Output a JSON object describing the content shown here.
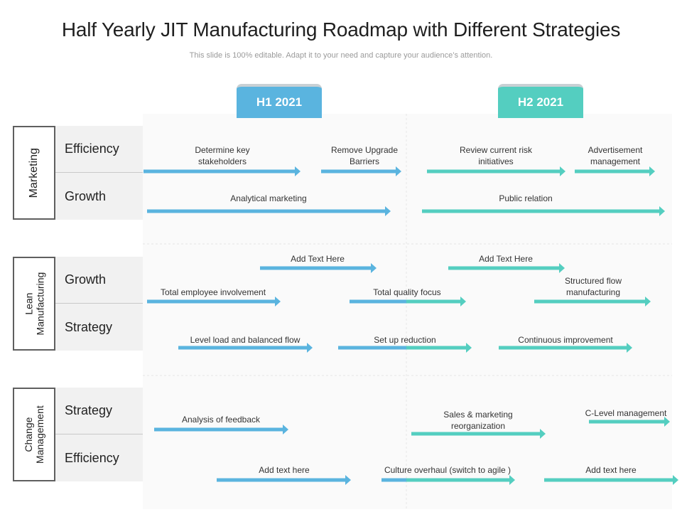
{
  "title": "Half Yearly JIT Manufacturing Roadmap with Different Strategies",
  "subtitle": "This slide is 100% editable. Adapt it to your need and capture your audience’s attention.",
  "colors": {
    "h1": "#5ab4df",
    "h2": "#54cec0"
  },
  "halves": [
    "H1 2021",
    "H2 2021"
  ],
  "groups": [
    {
      "label": "Marketing",
      "rows": [
        "Efficiency",
        "Growth"
      ]
    },
    {
      "label": "Lean\nManufacturing",
      "rows": [
        "Growth",
        "Strategy"
      ]
    },
    {
      "label": "Change\nManagement",
      "rows": [
        "Strategy",
        "Efficiency"
      ]
    }
  ],
  "items": [
    {
      "label": "Determine key\nstakeholders"
    },
    {
      "label": "Remove Upgrade\nBarriers"
    },
    {
      "label": "Review current risk\ninitiatives"
    },
    {
      "label": "Advertisement\nmanagement"
    },
    {
      "label": "Analytical marketing"
    },
    {
      "label": "Public relation"
    },
    {
      "label": "Add Text Here"
    },
    {
      "label": "Add Text Here"
    },
    {
      "label": "Total employee involvement"
    },
    {
      "label": "Total quality focus"
    },
    {
      "label": "Structured flow\nmanufacturing"
    },
    {
      "label": "Level load and balanced flow"
    },
    {
      "label": "Set up reduction"
    },
    {
      "label": "Continuous improvement"
    },
    {
      "label": "Analysis of feedback"
    },
    {
      "label": "Sales & marketing\nreorganization"
    },
    {
      "label": "C-Level management"
    },
    {
      "label": "Add text here"
    },
    {
      "label": "Culture overhaul (switch to agile )"
    },
    {
      "label": "Add text here"
    }
  ]
}
